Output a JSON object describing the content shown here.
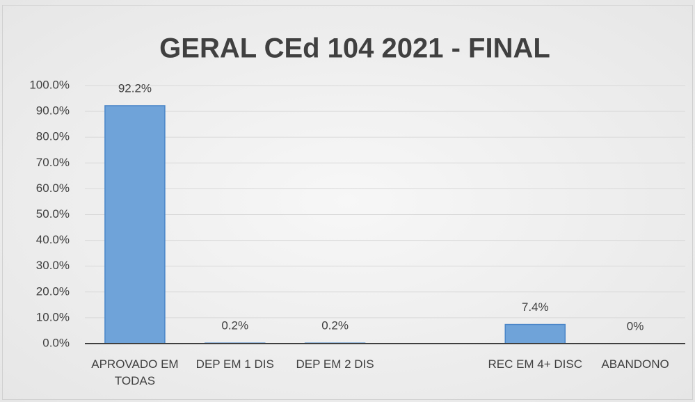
{
  "chart_data": {
    "type": "bar",
    "title": "GERAL CEd 104 2021 - FINAL",
    "categories": [
      "APROVADO EM TODAS",
      "DEP EM 1 DIS",
      "DEP EM 2 DIS",
      null,
      "REC EM 4+ DISC",
      "ABANDONO"
    ],
    "values": [
      92.2,
      0.2,
      0.2,
      null,
      7.4,
      0
    ],
    "value_labels": [
      "92.2%",
      "0.2%",
      "0.2%",
      null,
      "7.4%",
      "0%"
    ],
    "color": "#6fa3d9",
    "ylim": [
      0,
      100
    ],
    "yticks": [
      {
        "value": 0,
        "label": "0.0%"
      },
      {
        "value": 10,
        "label": "10.0%"
      },
      {
        "value": 20,
        "label": "20.0%"
      },
      {
        "value": 30,
        "label": "30.0%"
      },
      {
        "value": 40,
        "label": "40.0%"
      },
      {
        "value": 50,
        "label": "50.0%"
      },
      {
        "value": 60,
        "label": "60.0%"
      },
      {
        "value": 70,
        "label": "70.0%"
      },
      {
        "value": 80,
        "label": "80.0%"
      },
      {
        "value": 90,
        "label": "90.0%"
      },
      {
        "value": 100,
        "label": "100.0%"
      }
    ],
    "grid": true
  }
}
